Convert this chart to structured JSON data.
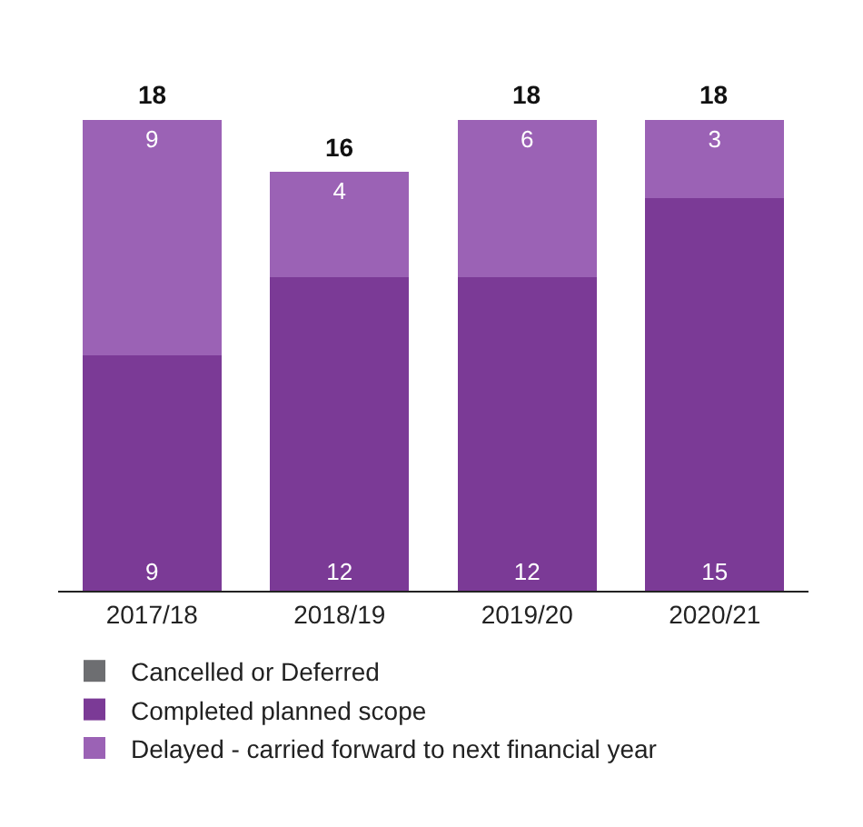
{
  "chart_data": {
    "type": "bar",
    "stacked": true,
    "categories": [
      "2017/18",
      "2018/19",
      "2019/20",
      "2020/21"
    ],
    "series": [
      {
        "name": "Cancelled or Deferred",
        "color": "#6d6e71",
        "values": [
          null,
          null,
          null,
          null
        ]
      },
      {
        "name": "Completed planned scope",
        "color": "#7b3a96",
        "values": [
          9,
          12,
          12,
          15
        ]
      },
      {
        "name": "Delayed - carried forward to next financial year",
        "color": "#9b62b5",
        "values": [
          9,
          4,
          6,
          3
        ]
      }
    ],
    "data_labels": true,
    "totals": [
      "18",
      "16",
      "18",
      "18"
    ],
    "legend": "bottom"
  }
}
